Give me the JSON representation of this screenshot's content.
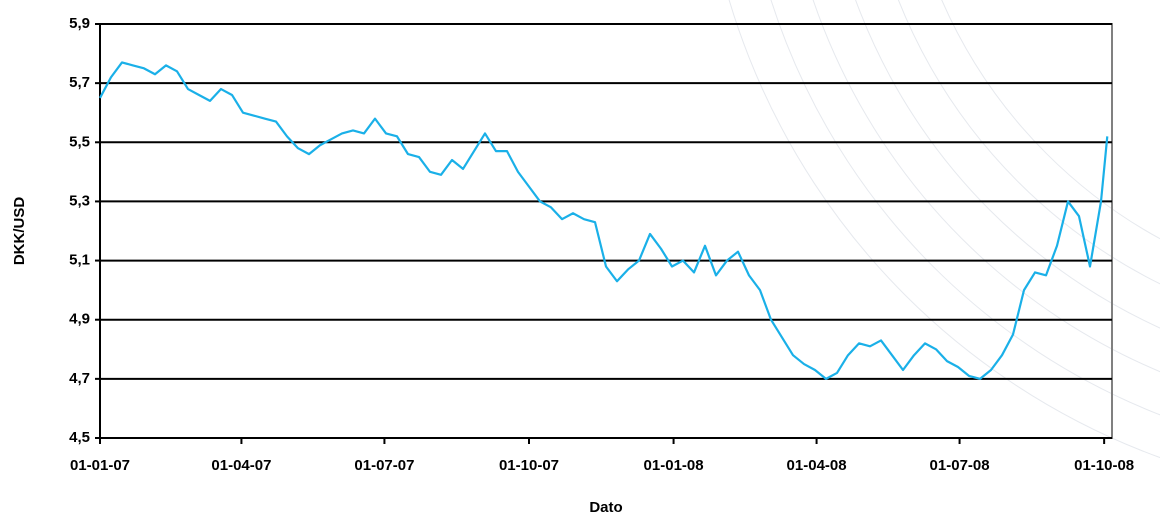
{
  "chart_data": {
    "type": "line",
    "x_label": "Dato",
    "y_label": "DKK/USD",
    "x": [
      "2007-01-01",
      "2007-01-08",
      "2007-01-15",
      "2007-01-22",
      "2007-01-29",
      "2007-02-05",
      "2007-02-12",
      "2007-02-19",
      "2007-02-26",
      "2007-03-05",
      "2007-03-12",
      "2007-03-19",
      "2007-03-26",
      "2007-04-02",
      "2007-04-09",
      "2007-04-16",
      "2007-04-23",
      "2007-04-30",
      "2007-05-07",
      "2007-05-14",
      "2007-05-21",
      "2007-05-28",
      "2007-06-04",
      "2007-06-11",
      "2007-06-18",
      "2007-06-25",
      "2007-07-02",
      "2007-07-09",
      "2007-07-16",
      "2007-07-23",
      "2007-07-30",
      "2007-08-06",
      "2007-08-13",
      "2007-08-20",
      "2007-08-27",
      "2007-09-03",
      "2007-09-10",
      "2007-09-17",
      "2007-09-24",
      "2007-10-01",
      "2007-10-08",
      "2007-10-15",
      "2007-10-22",
      "2007-10-29",
      "2007-11-05",
      "2007-11-12",
      "2007-11-19",
      "2007-11-26",
      "2007-12-03",
      "2007-12-10",
      "2007-12-17",
      "2007-12-24",
      "2007-12-31",
      "2008-01-07",
      "2008-01-14",
      "2008-01-21",
      "2008-01-28",
      "2008-02-04",
      "2008-02-11",
      "2008-02-18",
      "2008-02-25",
      "2008-03-03",
      "2008-03-10",
      "2008-03-17",
      "2008-03-24",
      "2008-03-31",
      "2008-04-07",
      "2008-04-14",
      "2008-04-21",
      "2008-04-28",
      "2008-05-05",
      "2008-05-12",
      "2008-05-19",
      "2008-05-26",
      "2008-06-02",
      "2008-06-09",
      "2008-06-16",
      "2008-06-23",
      "2008-06-30",
      "2008-07-07",
      "2008-07-14",
      "2008-07-21",
      "2008-07-28",
      "2008-08-04",
      "2008-08-11",
      "2008-08-18",
      "2008-08-25",
      "2008-09-01",
      "2008-09-08",
      "2008-09-15",
      "2008-09-22",
      "2008-09-29",
      "2008-10-03"
    ],
    "series": [
      {
        "name": "DKK/USD",
        "color": "#1ab0e8",
        "values": [
          5.65,
          5.72,
          5.77,
          5.76,
          5.75,
          5.73,
          5.76,
          5.74,
          5.68,
          5.66,
          5.64,
          5.68,
          5.66,
          5.6,
          5.59,
          5.58,
          5.57,
          5.52,
          5.48,
          5.46,
          5.49,
          5.51,
          5.53,
          5.54,
          5.53,
          5.58,
          5.53,
          5.52,
          5.46,
          5.45,
          5.4,
          5.39,
          5.44,
          5.41,
          5.47,
          5.53,
          5.47,
          5.47,
          5.4,
          5.35,
          5.3,
          5.28,
          5.24,
          5.26,
          5.24,
          5.23,
          5.08,
          5.03,
          5.07,
          5.1,
          5.19,
          5.14,
          5.08,
          5.1,
          5.06,
          5.15,
          5.05,
          5.1,
          5.13,
          5.05,
          5.0,
          4.9,
          4.84,
          4.78,
          4.75,
          4.73,
          4.7,
          4.72,
          4.78,
          4.82,
          4.81,
          4.83,
          4.78,
          4.73,
          4.78,
          4.82,
          4.8,
          4.76,
          4.74,
          4.71,
          4.7,
          4.73,
          4.78,
          4.85,
          5.0,
          5.06,
          5.05,
          5.15,
          5.3,
          5.25,
          5.08,
          5.3,
          5.52
        ]
      }
    ],
    "xlim": [
      "2007-01-01",
      "2008-10-06"
    ],
    "xticks": [
      {
        "value": "2007-01-01",
        "label": "01-01-07"
      },
      {
        "value": "2007-04-01",
        "label": "01-04-07"
      },
      {
        "value": "2007-07-01",
        "label": "01-07-07"
      },
      {
        "value": "2007-10-01",
        "label": "01-10-07"
      },
      {
        "value": "2008-01-01",
        "label": "01-01-08"
      },
      {
        "value": "2008-04-01",
        "label": "01-04-08"
      },
      {
        "value": "2008-07-01",
        "label": "01-07-08"
      },
      {
        "value": "2008-10-01",
        "label": "01-10-08"
      }
    ],
    "ylim": [
      4.5,
      5.9
    ],
    "yticks": [
      {
        "value": 4.5,
        "label": "4,5"
      },
      {
        "value": 4.7,
        "label": "4,7"
      },
      {
        "value": 4.9,
        "label": "4,9"
      },
      {
        "value": 5.1,
        "label": "5,1"
      },
      {
        "value": 5.3,
        "label": "5,3"
      },
      {
        "value": 5.5,
        "label": "5,5"
      },
      {
        "value": 5.7,
        "label": "5,7"
      },
      {
        "value": 5.9,
        "label": "5,9"
      }
    ],
    "grid": true
  }
}
